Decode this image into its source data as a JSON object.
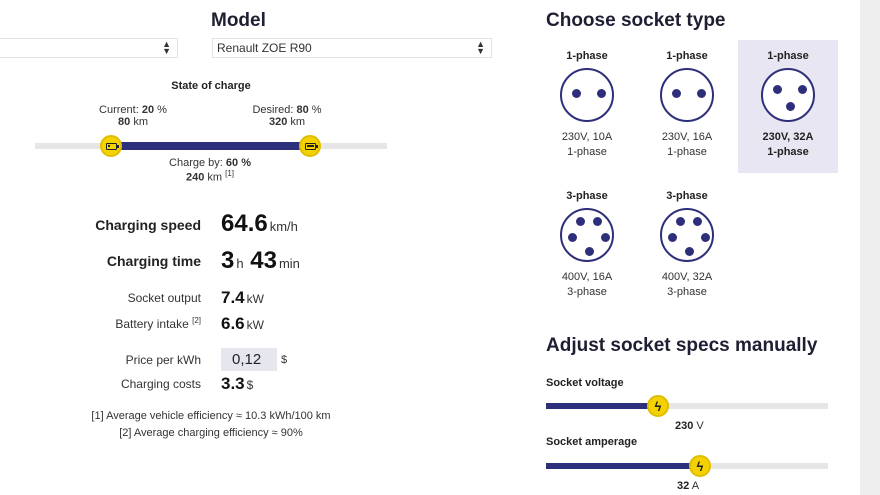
{
  "model": {
    "title": "Model",
    "brand_select_value": "",
    "model_select_value": "Renault ZOE R90"
  },
  "soc": {
    "title": "State of charge",
    "current_label": "Current:",
    "current_pct": "20",
    "pct_unit": "%",
    "current_km": "80",
    "km_unit": "km",
    "desired_label": "Desired:",
    "desired_pct": "80",
    "desired_km": "320",
    "charge_by_label": "Charge by:",
    "charge_by_pct": "60",
    "charge_by_km": "240",
    "charge_by_note": "[1]",
    "current_fraction": 0.2,
    "desired_fraction": 0.8
  },
  "stats": {
    "charging_speed_label": "Charging speed",
    "charging_speed_value": "64.6",
    "charging_speed_unit": "km/h",
    "charging_time_label": "Charging time",
    "charging_time_hours": "3",
    "hours_unit": "h",
    "charging_time_minutes": "43",
    "minutes_unit": "min",
    "socket_output_label": "Socket output",
    "socket_output_value": "7.4",
    "kw_unit": "kW",
    "battery_intake_label": "Battery intake",
    "battery_intake_note": "[2]",
    "battery_intake_value": "6.6",
    "price_label": "Price per kWh",
    "price_value": "0,12",
    "currency": "$",
    "costs_label": "Charging costs",
    "costs_value": "3.3"
  },
  "footnotes": {
    "note1": "[1] Average vehicle efficiency ≈ 10.3 kWh/100 km",
    "note2": "[2] Average charging efficiency ≈ 90%"
  },
  "sockets": {
    "title": "Choose socket type",
    "items": [
      {
        "phase": "1-phase",
        "spec": "230V, 10A",
        "sub": "1-phase",
        "icon": "single-phase-socket-icon",
        "selected": false
      },
      {
        "phase": "1-phase",
        "spec": "230V, 16A",
        "sub": "1-phase",
        "icon": "single-phase-socket-icon",
        "selected": false
      },
      {
        "phase": "1-phase",
        "spec": "230V, 32A",
        "sub": "1-phase",
        "icon": "single-phase-socket-icon",
        "selected": true
      },
      {
        "phase": "3-phase",
        "spec": "400V, 16A",
        "sub": "3-phase",
        "icon": "three-phase-socket-icon",
        "selected": false
      },
      {
        "phase": "3-phase",
        "spec": "400V, 32A",
        "sub": "3-phase",
        "icon": "three-phase-socket-icon",
        "selected": false
      }
    ]
  },
  "adjust": {
    "title": "Adjust socket specs manually",
    "voltage_label": "Socket voltage",
    "voltage_value": "230",
    "voltage_unit": "V",
    "voltage_fraction": 0.4,
    "amperage_label": "Socket amperage",
    "amperage_value": "32",
    "amperage_unit": "A",
    "amperage_fraction": 0.55
  },
  "colors": {
    "accent": "#2e2f7a",
    "handle": "#f4d200",
    "selected_bg": "#e7e6f2"
  }
}
